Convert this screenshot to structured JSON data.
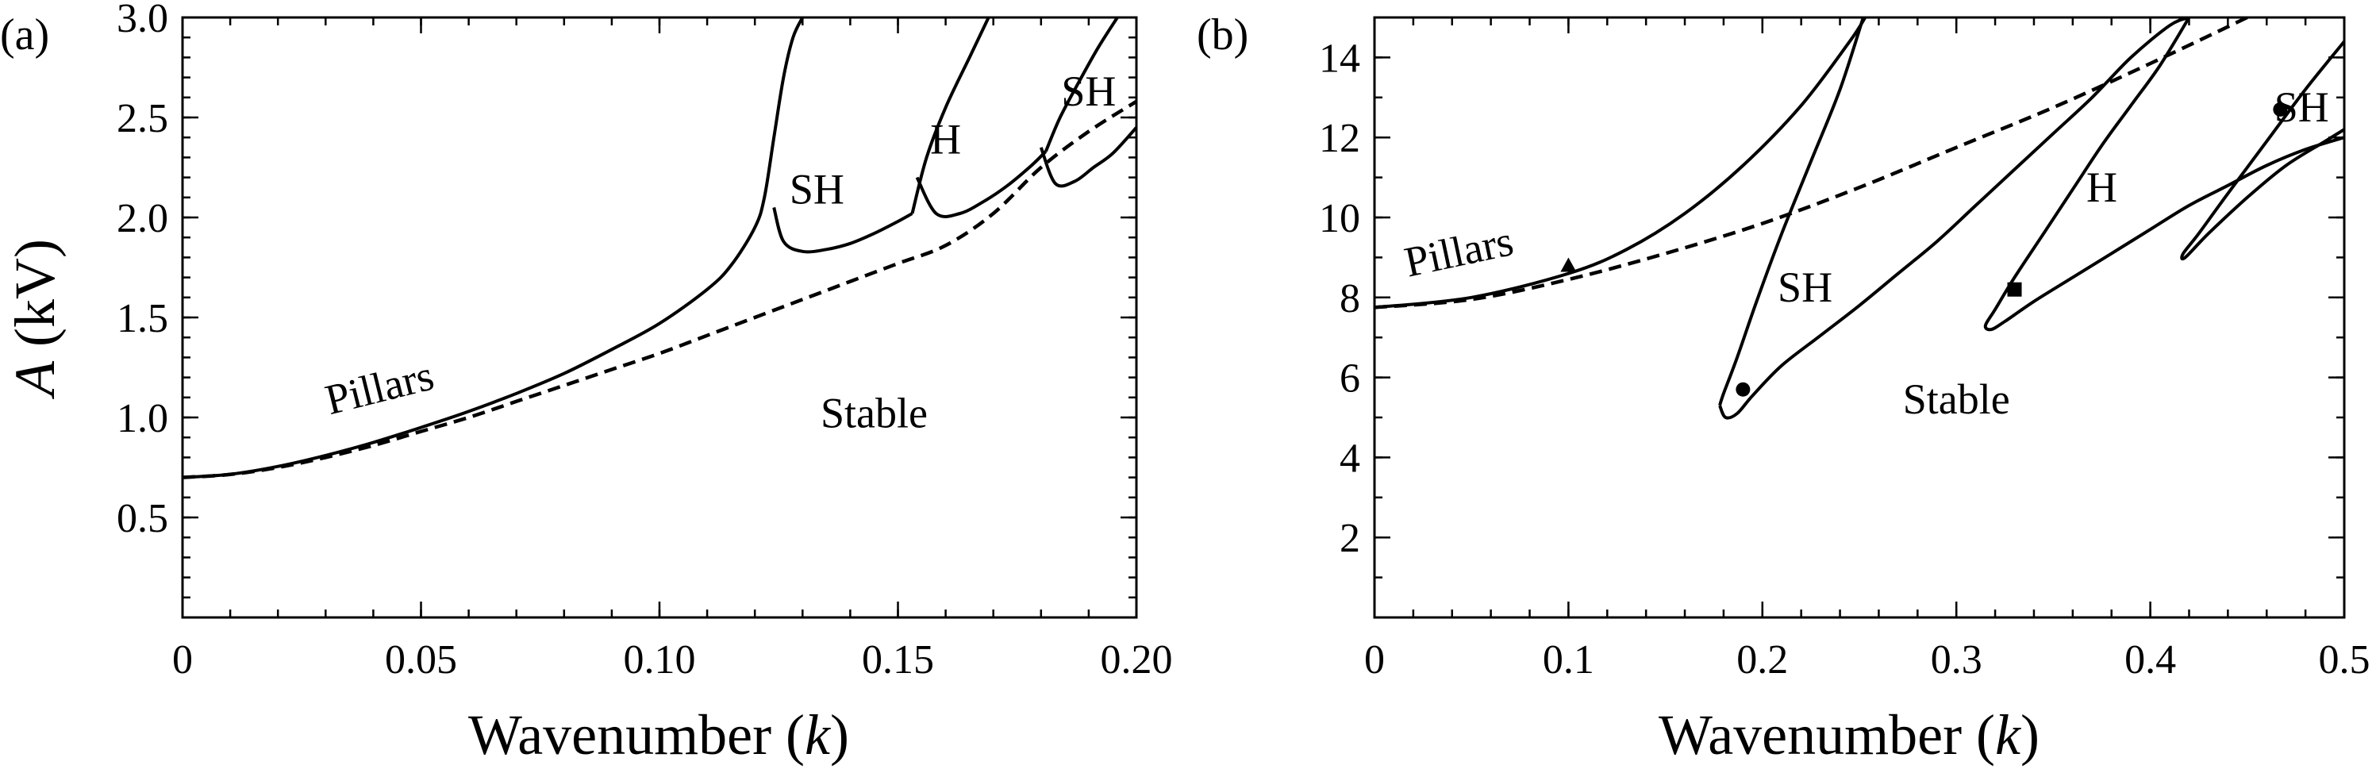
{
  "chart_data": [
    {
      "type": "line",
      "panel_label": "(a)",
      "xlabel": "Wavenumber (k)",
      "ylabel": "A (kV)",
      "xlim": [
        0,
        0.2
      ],
      "ylim": [
        0,
        3.0
      ],
      "x_ticks": [
        {
          "value": 0,
          "label": "0"
        },
        {
          "value": 0.05,
          "label": "0.05"
        },
        {
          "value": 0.1,
          "label": "0.10"
        },
        {
          "value": 0.15,
          "label": "0.15"
        },
        {
          "value": 0.2,
          "label": "0.20"
        }
      ],
      "y_ticks": [
        {
          "value": 0.5,
          "label": "0.5"
        },
        {
          "value": 1.0,
          "label": "1.0"
        },
        {
          "value": 1.5,
          "label": "1.5"
        },
        {
          "value": 2.0,
          "label": "2.0"
        },
        {
          "value": 2.5,
          "label": "2.5"
        },
        {
          "value": 3.0,
          "label": "3.0"
        }
      ],
      "grid": false,
      "series": [
        {
          "style": "dashed",
          "x": [
            0.0,
            0.01,
            0.02,
            0.03,
            0.04,
            0.05,
            0.06,
            0.07,
            0.08,
            0.09,
            0.1,
            0.11,
            0.12,
            0.13,
            0.14,
            0.15,
            0.16,
            0.17,
            0.18,
            0.19,
            0.2
          ],
          "y": [
            0.7,
            0.715,
            0.75,
            0.8,
            0.86,
            0.93,
            1.0,
            1.08,
            1.16,
            1.24,
            1.32,
            1.41,
            1.5,
            1.59,
            1.68,
            1.77,
            1.86,
            2.02,
            2.25,
            2.43,
            2.58
          ]
        },
        {
          "style": "solid",
          "x": [
            0.0,
            0.01,
            0.02,
            0.03,
            0.04,
            0.05,
            0.06,
            0.07,
            0.08,
            0.09,
            0.1,
            0.11,
            0.115,
            0.12,
            0.122,
            0.124,
            0.126,
            0.128,
            0.13
          ],
          "y": [
            0.7,
            0.716,
            0.755,
            0.81,
            0.875,
            0.95,
            1.03,
            1.12,
            1.22,
            1.34,
            1.47,
            1.64,
            1.76,
            1.95,
            2.1,
            2.4,
            2.7,
            2.9,
            3.0
          ]
        },
        {
          "style": "solid",
          "x": [
            0.124,
            0.126,
            0.13,
            0.135,
            0.14,
            0.145,
            0.15,
            0.153
          ],
          "y": [
            2.05,
            1.88,
            1.83,
            1.84,
            1.87,
            1.92,
            1.98,
            2.02
          ]
        },
        {
          "style": "solid",
          "x": [
            0.153,
            0.156,
            0.16,
            0.165,
            0.169
          ],
          "y": [
            2.02,
            2.3,
            2.55,
            2.8,
            3.0
          ]
        },
        {
          "style": "solid",
          "x": [
            0.154,
            0.158,
            0.163,
            0.168,
            0.173,
            0.178,
            0.181
          ],
          "y": [
            2.2,
            2.02,
            2.02,
            2.08,
            2.16,
            2.26,
            2.33
          ]
        },
        {
          "style": "solid",
          "x": [
            0.181,
            0.184,
            0.188,
            0.192,
            0.196
          ],
          "y": [
            2.33,
            2.5,
            2.68,
            2.85,
            3.0
          ]
        },
        {
          "style": "solid",
          "x": [
            0.18,
            0.183,
            0.187,
            0.191,
            0.195,
            0.2
          ],
          "y": [
            2.35,
            2.17,
            2.18,
            2.25,
            2.32,
            2.45
          ]
        }
      ],
      "annotations": [
        {
          "text": "Pillars",
          "x": 0.042,
          "y": 1.08,
          "rotate": -14
        },
        {
          "text": "Stable",
          "x": 0.145,
          "y": 0.95
        },
        {
          "text": "SH",
          "x": 0.133,
          "y": 2.07
        },
        {
          "text": "H",
          "x": 0.16,
          "y": 2.32
        },
        {
          "text": "SH",
          "x": 0.19,
          "y": 2.56
        }
      ]
    },
    {
      "type": "line",
      "panel_label": "(b)",
      "xlabel": "Wavenumber (k)",
      "ylabel": "",
      "xlim": [
        0,
        0.5
      ],
      "ylim": [
        0,
        15
      ],
      "x_ticks": [
        {
          "value": 0,
          "label": "0"
        },
        {
          "value": 0.1,
          "label": "0.1"
        },
        {
          "value": 0.2,
          "label": "0.2"
        },
        {
          "value": 0.3,
          "label": "0.3"
        },
        {
          "value": 0.4,
          "label": "0.4"
        },
        {
          "value": 0.5,
          "label": "0.5"
        }
      ],
      "y_ticks": [
        {
          "value": 2,
          "label": "2"
        },
        {
          "value": 4,
          "label": "4"
        },
        {
          "value": 6,
          "label": "6"
        },
        {
          "value": 8,
          "label": "8"
        },
        {
          "value": 10,
          "label": "10"
        },
        {
          "value": 12,
          "label": "12"
        },
        {
          "value": 14,
          "label": "14"
        }
      ],
      "grid": false,
      "series": [
        {
          "style": "dashed",
          "x": [
            0.0,
            0.05,
            0.1,
            0.15,
            0.2,
            0.25,
            0.3,
            0.35,
            0.4,
            0.45
          ],
          "y": [
            7.75,
            7.95,
            8.45,
            9.1,
            9.85,
            10.75,
            11.75,
            12.75,
            13.85,
            15.0
          ]
        },
        {
          "style": "solid",
          "x": [
            0.0,
            0.05,
            0.1,
            0.13,
            0.16,
            0.19,
            0.22,
            0.245,
            0.253
          ],
          "y": [
            7.75,
            8.0,
            8.6,
            9.2,
            10.1,
            11.3,
            12.8,
            14.4,
            15.0
          ]
        },
        {
          "style": "solid",
          "x": [
            0.252,
            0.24,
            0.225,
            0.21,
            0.197,
            0.187,
            0.18,
            0.178
          ],
          "y": [
            15.0,
            13.2,
            11.4,
            9.6,
            7.9,
            6.5,
            5.6,
            5.3
          ]
        },
        {
          "style": "solid",
          "x": [
            0.178,
            0.181,
            0.187,
            0.195,
            0.21,
            0.23,
            0.25,
            0.27,
            0.29,
            0.31,
            0.33,
            0.35,
            0.37,
            0.39,
            0.41,
            0.42
          ],
          "y": [
            5.3,
            5.0,
            5.1,
            5.55,
            6.3,
            7.05,
            7.8,
            8.6,
            9.4,
            10.3,
            11.2,
            12.1,
            13.0,
            14.0,
            14.8,
            15.0
          ]
        },
        {
          "style": "solid",
          "x": [
            0.42,
            0.405,
            0.39,
            0.375,
            0.36,
            0.345,
            0.33,
            0.32,
            0.315,
            0.318,
            0.325,
            0.34,
            0.36,
            0.38,
            0.4,
            0.42,
            0.44,
            0.46,
            0.48,
            0.5
          ],
          "y": [
            15.0,
            13.8,
            12.8,
            11.8,
            10.7,
            9.6,
            8.5,
            7.7,
            7.3,
            7.2,
            7.4,
            7.9,
            8.5,
            9.1,
            9.7,
            10.3,
            10.8,
            11.3,
            11.7,
            12.0
          ]
        },
        {
          "style": "solid",
          "x": [
            0.5,
            0.48,
            0.46,
            0.44,
            0.425,
            0.417,
            0.418,
            0.43,
            0.45,
            0.47,
            0.49,
            0.5
          ],
          "y": [
            14.4,
            13.2,
            11.9,
            10.6,
            9.6,
            9.1,
            9.0,
            9.6,
            10.5,
            11.3,
            11.9,
            12.2
          ]
        }
      ],
      "markers": [
        {
          "shape": "triangle",
          "x": 0.1,
          "y": 8.8
        },
        {
          "shape": "circle",
          "x": 0.19,
          "y": 5.7
        },
        {
          "shape": "square",
          "x": 0.33,
          "y": 8.2
        },
        {
          "shape": "circle",
          "x": 0.467,
          "y": 12.7
        }
      ],
      "annotations": [
        {
          "text": "Pillars",
          "x": 0.045,
          "y": 8.8,
          "rotate": -12
        },
        {
          "text": "SH",
          "x": 0.222,
          "y": 7.9
        },
        {
          "text": "H",
          "x": 0.375,
          "y": 10.4
        },
        {
          "text": "SH",
          "x": 0.478,
          "y": 12.4
        },
        {
          "text": "Stable",
          "x": 0.3,
          "y": 5.1
        }
      ]
    }
  ]
}
